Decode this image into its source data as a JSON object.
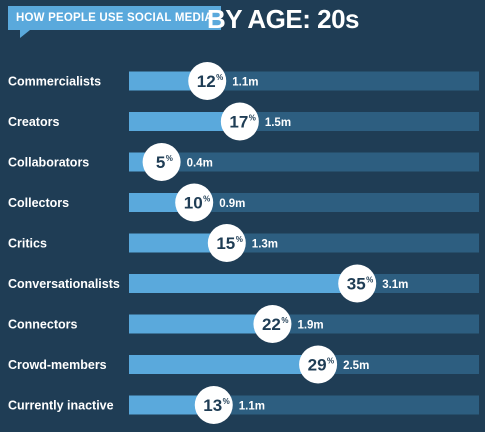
{
  "header": {
    "tag": "HOW PEOPLE USE SOCIAL MEDIA",
    "title": "BY AGE: 20s"
  },
  "colors": {
    "background": "#1f3d55",
    "track": "#2d5e80",
    "bar": "#5aa9dc",
    "badge": "#ffffff"
  },
  "chart_data": {
    "type": "bar",
    "orientation": "horizontal",
    "title": "BY AGE: 20s",
    "subtitle": "HOW PEOPLE USE SOCIAL MEDIA",
    "xlim": [
      0,
      100
    ],
    "categories": [
      "Commercialists",
      "Creators",
      "Collaborators",
      "Collectors",
      "Critics",
      "Conversationalists",
      "Connectors",
      "Crowd-members",
      "Currently inactive"
    ],
    "values": [
      12,
      17,
      5,
      10,
      15,
      35,
      22,
      29,
      13
    ],
    "value_suffix": "%",
    "counts": [
      "1.1m",
      "1.5m",
      "0.4m",
      "0.9m",
      "1.3m",
      "3.1m",
      "1.9m",
      "2.5m",
      "1.1m"
    ]
  }
}
